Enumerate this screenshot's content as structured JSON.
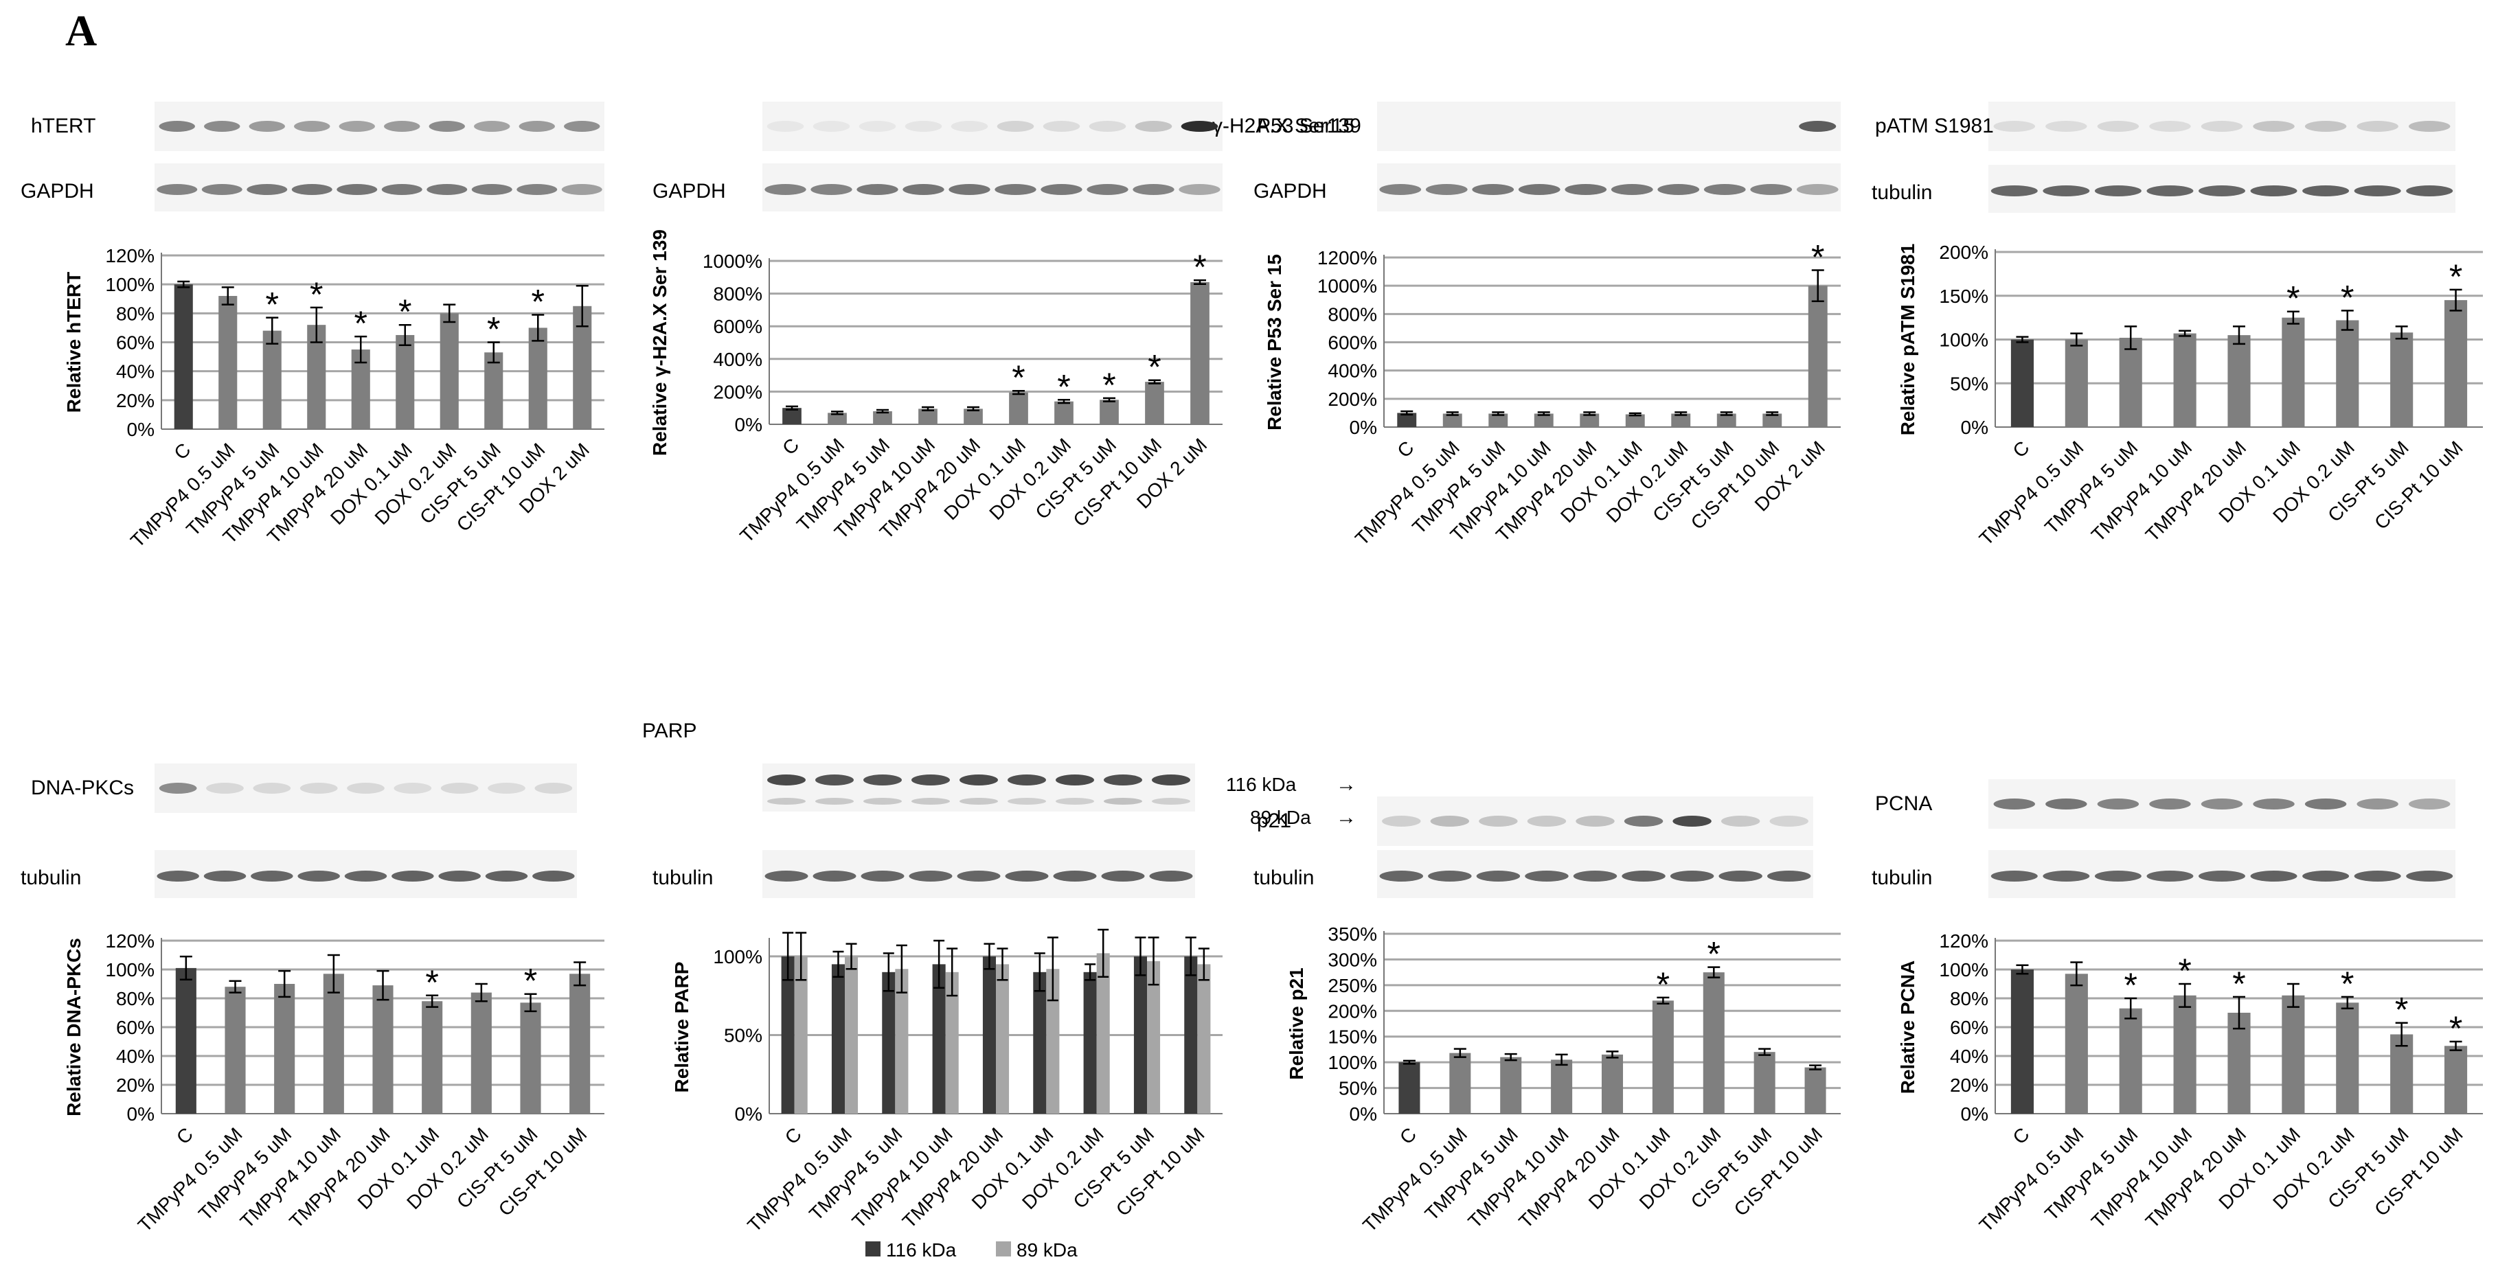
{
  "figure": {
    "panel_label": "A"
  },
  "colors": {
    "control": "#404040",
    "treated": "#7f7f7f",
    "band_kda116": "#3a3a3a",
    "band_kda89": "#a6a6a6",
    "blot_bg": "#f4f4f4",
    "band": "#3c3c3c",
    "grid": "#a6a6a6"
  },
  "chart_data": [
    {
      "id": "hTERT",
      "type": "bar",
      "blot_label": "hTERT",
      "loading_label": "GAPDH",
      "ylabel": "Relative hTERT",
      "ylim": [
        0,
        120
      ],
      "yticks": [
        0,
        20,
        40,
        60,
        80,
        100,
        120
      ],
      "grid": true,
      "tick_labels": [
        "0%",
        "20%",
        "40%",
        "60%",
        "80%",
        "100%",
        "120%"
      ],
      "categories": [
        "C",
        "TMPyP4 0.5 uM",
        "TMPyP4 5 uM",
        "TMPyP4 10 uM",
        "TMPyP4 20 uM",
        "DOX 0.1 uM",
        "DOX 0.2 uM",
        "CIS-Pt 5 uM",
        "CIS-Pt 10 uM",
        "DOX 2 uM"
      ],
      "values": [
        100,
        92,
        68,
        72,
        55,
        65,
        80,
        53,
        70,
        85
      ],
      "errors": [
        2,
        6,
        9,
        12,
        9,
        7,
        6,
        7,
        9,
        14
      ],
      "significant": [
        false,
        false,
        true,
        true,
        true,
        true,
        false,
        true,
        true,
        false
      ],
      "band_intensity": [
        0.55,
        0.5,
        0.42,
        0.4,
        0.38,
        0.42,
        0.5,
        0.38,
        0.42,
        0.48
      ],
      "loading_intensity": [
        0.55,
        0.55,
        0.6,
        0.62,
        0.62,
        0.6,
        0.6,
        0.58,
        0.55,
        0.4
      ]
    },
    {
      "id": "gH2AX",
      "type": "bar",
      "blot_label": "γ-H2A.X Ser139",
      "loading_label": "GAPDH",
      "ylabel": "Relative γ-H2A.X Ser 139",
      "ylim": [
        0,
        1000
      ],
      "yticks": [
        0,
        200,
        400,
        600,
        800,
        1000
      ],
      "grid": true,
      "tick_labels": [
        "0%",
        "200%",
        "400%",
        "600%",
        "800%",
        "1000%"
      ],
      "categories": [
        "C",
        "TMPyP4 0.5 uM",
        "TMPyP4 5 uM",
        "TMPyP4 10 uM",
        "TMPyP4 20 uM",
        "DOX 0.1 uM",
        "DOX 0.2 uM",
        "CIS-Pt 5 uM",
        "CIS-Pt 10 uM",
        "DOX 2 uM"
      ],
      "values": [
        100,
        70,
        80,
        95,
        95,
        195,
        140,
        150,
        260,
        870
      ],
      "errors": [
        10,
        8,
        8,
        10,
        10,
        10,
        10,
        10,
        10,
        12
      ],
      "significant": [
        false,
        false,
        false,
        false,
        false,
        true,
        true,
        true,
        true,
        true
      ],
      "band_intensity": [
        0.02,
        0.02,
        0.02,
        0.03,
        0.03,
        0.12,
        0.08,
        0.08,
        0.2,
        1.0
      ],
      "loading_intensity": [
        0.55,
        0.55,
        0.6,
        0.62,
        0.62,
        0.6,
        0.6,
        0.58,
        0.55,
        0.35
      ]
    },
    {
      "id": "P53",
      "type": "bar",
      "blot_label": "P53 Ser15",
      "loading_label": "GAPDH",
      "ylabel": "Relative P53 Ser 15",
      "ylim": [
        0,
        1200
      ],
      "yticks": [
        0,
        200,
        400,
        600,
        800,
        1000,
        1200
      ],
      "grid": true,
      "tick_labels": [
        "0%",
        "200%",
        "400%",
        "600%",
        "800%",
        "1000%",
        "1200%"
      ],
      "categories": [
        "C",
        "TMPyP4 0.5 uM",
        "TMPyP4 5 uM",
        "TMPyP4 10 uM",
        "TMPyP4 20 uM",
        "DOX 0.1 uM",
        "DOX 0.2 uM",
        "CIS-Pt 5 uM",
        "CIS-Pt 10 uM",
        "DOX 2 uM"
      ],
      "values": [
        100,
        95,
        95,
        95,
        95,
        90,
        95,
        95,
        95,
        1000
      ],
      "errors": [
        12,
        10,
        10,
        10,
        10,
        8,
        10,
        10,
        10,
        110
      ],
      "significant": [
        false,
        false,
        false,
        false,
        false,
        false,
        false,
        false,
        false,
        true
      ],
      "band_intensity": [
        0.0,
        0.0,
        0.0,
        0.0,
        0.0,
        0.0,
        0.0,
        0.0,
        0.0,
        0.75
      ],
      "loading_intensity": [
        0.55,
        0.55,
        0.6,
        0.62,
        0.62,
        0.6,
        0.6,
        0.58,
        0.55,
        0.35
      ]
    },
    {
      "id": "pATM",
      "type": "bar",
      "blot_label": "pATM S1981",
      "loading_label": "tubulin",
      "ylabel": "Relative pATM S1981",
      "ylim": [
        0,
        200
      ],
      "yticks": [
        0,
        50,
        100,
        150,
        200
      ],
      "grid": true,
      "tick_labels": [
        "0%",
        "50%",
        "100%",
        "150%",
        "200%"
      ],
      "categories": [
        "C",
        "TMPyP4 0.5 uM",
        "TMPyP4 5 uM",
        "TMPyP4 10 uM",
        "TMPyP4 20 uM",
        "DOX 0.1 uM",
        "DOX 0.2 uM",
        "CIS-Pt 5 uM",
        "CIS-Pt 10 uM"
      ],
      "values": [
        100,
        100,
        102,
        107,
        105,
        125,
        122,
        108,
        145
      ],
      "errors": [
        3,
        7,
        13,
        3,
        10,
        7,
        11,
        7,
        12
      ],
      "significant": [
        false,
        false,
        false,
        false,
        false,
        true,
        true,
        false,
        true
      ],
      "band_intensity": [
        0.08,
        0.08,
        0.1,
        0.08,
        0.1,
        0.2,
        0.2,
        0.15,
        0.25
      ],
      "loading_intensity": [
        0.7,
        0.7,
        0.7,
        0.7,
        0.7,
        0.72,
        0.72,
        0.72,
        0.72
      ]
    },
    {
      "id": "DNAPKcs",
      "type": "bar",
      "blot_label": "DNA-PKCs",
      "loading_label": "tubulin",
      "ylabel": "Relative DNA-PKCs",
      "ylim": [
        0,
        120
      ],
      "yticks": [
        0,
        20,
        40,
        60,
        80,
        100,
        120
      ],
      "grid": true,
      "tick_labels": [
        "0%",
        "20%",
        "40%",
        "60%",
        "80%",
        "100%",
        "120%"
      ],
      "categories": [
        "C",
        "TMPyP4 0.5 uM",
        "TMPyP4 5 uM",
        "TMPyP4 10 uM",
        "TMPyP4 20 uM",
        "DOX 0.1 uM",
        "DOX 0.2 uM",
        "CIS-Pt 5 uM",
        "CIS-Pt 10 uM"
      ],
      "values": [
        101,
        88,
        90,
        97,
        89,
        78,
        84,
        77,
        97
      ],
      "errors": [
        8,
        4,
        9,
        13,
        10,
        4,
        6,
        6,
        8
      ],
      "significant": [
        false,
        false,
        false,
        false,
        false,
        true,
        false,
        true,
        false
      ],
      "band_intensity": [
        0.5,
        0.1,
        0.1,
        0.1,
        0.1,
        0.08,
        0.1,
        0.08,
        0.1
      ],
      "loading_intensity": [
        0.7,
        0.7,
        0.7,
        0.7,
        0.7,
        0.72,
        0.72,
        0.72,
        0.72
      ]
    },
    {
      "id": "PARP",
      "type": "bar",
      "blot_label": "PARP",
      "loading_label": "tubulin",
      "band_markers": [
        "116 kDa",
        "89 kDa"
      ],
      "ylabel": "Relative PARP",
      "ylim": [
        0,
        110
      ],
      "yticks": [
        0,
        50,
        100
      ],
      "grid": true,
      "tick_labels": [
        "0%",
        "50%",
        "100%"
      ],
      "categories": [
        "C",
        "TMPyP4 0.5 uM",
        "TMPyP4 5 uM",
        "TMPyP4 10 uM",
        "TMPyP4 20 uM",
        "DOX 0.1 uM",
        "DOX 0.2 uM",
        "CIS-Pt 5 uM",
        "CIS-Pt 10 uM"
      ],
      "legend": [
        "116 kDa",
        "89 kDa"
      ],
      "series": [
        {
          "name": "116 kDa",
          "values": [
            100,
            95,
            90,
            95,
            100,
            90,
            90,
            100,
            100
          ],
          "errors": [
            15,
            8,
            12,
            15,
            8,
            12,
            5,
            12,
            12
          ]
        },
        {
          "name": "89 kDa",
          "values": [
            100,
            100,
            92,
            90,
            95,
            92,
            102,
            97,
            95
          ],
          "errors": [
            15,
            8,
            15,
            15,
            10,
            20,
            15,
            15,
            10
          ]
        }
      ],
      "significant": [
        false,
        false,
        false,
        false,
        false,
        false,
        false,
        false,
        false
      ],
      "band_intensity": [
        0.85,
        0.8,
        0.8,
        0.82,
        0.85,
        0.82,
        0.85,
        0.82,
        0.85
      ],
      "band2_intensity": [
        0.18,
        0.18,
        0.18,
        0.18,
        0.18,
        0.15,
        0.15,
        0.22,
        0.15
      ],
      "loading_intensity": [
        0.7,
        0.7,
        0.7,
        0.7,
        0.7,
        0.72,
        0.72,
        0.72,
        0.72
      ]
    },
    {
      "id": "p21",
      "type": "bar",
      "blot_label": "p21",
      "loading_label": "tubulin",
      "ylabel": "Relative p21",
      "ylim": [
        0,
        350
      ],
      "yticks": [
        0,
        50,
        100,
        150,
        200,
        250,
        300,
        350
      ],
      "grid": true,
      "tick_labels": [
        "0%",
        "50%",
        "100%",
        "150%",
        "200%",
        "250%",
        "300%",
        "350%"
      ],
      "categories": [
        "C",
        "TMPyP4 0.5 uM",
        "TMPyP4 5 uM",
        "TMPyP4 10 uM",
        "TMPyP4 20 uM",
        "DOX 0.1 uM",
        "DOX 0.2 uM",
        "CIS-Pt 5 uM",
        "CIS-Pt 10 uM"
      ],
      "values": [
        100,
        118,
        110,
        105,
        115,
        220,
        275,
        120,
        90
      ],
      "errors": [
        3,
        8,
        6,
        10,
        6,
        6,
        10,
        6,
        4
      ],
      "significant": [
        false,
        false,
        false,
        false,
        false,
        true,
        true,
        false,
        false
      ],
      "band_intensity": [
        0.15,
        0.25,
        0.2,
        0.18,
        0.22,
        0.6,
        0.85,
        0.18,
        0.12
      ],
      "loading_intensity": [
        0.7,
        0.7,
        0.7,
        0.7,
        0.7,
        0.72,
        0.72,
        0.72,
        0.72
      ]
    },
    {
      "id": "PCNA",
      "type": "bar",
      "blot_label": "PCNA",
      "loading_label": "tubulin",
      "ylabel": "Relative PCNA",
      "ylim": [
        0,
        120
      ],
      "yticks": [
        0,
        20,
        40,
        60,
        80,
        100,
        120
      ],
      "grid": true,
      "tick_labels": [
        "0%",
        "20%",
        "40%",
        "60%",
        "80%",
        "100%",
        "120%"
      ],
      "categories": [
        "C",
        "TMPyP4 0.5 uM",
        "TMPyP4 5 uM",
        "TMPyP4 10 uM",
        "TMPyP4 20 uM",
        "DOX 0.1 uM",
        "DOX 0.2 uM",
        "CIS-Pt 5 uM",
        "CIS-Pt 10 uM"
      ],
      "values": [
        100,
        97,
        73,
        82,
        70,
        82,
        77,
        55,
        47
      ],
      "errors": [
        3,
        8,
        7,
        8,
        11,
        8,
        4,
        8,
        3
      ],
      "significant": [
        false,
        false,
        true,
        true,
        true,
        false,
        true,
        true,
        true
      ],
      "band_intensity": [
        0.6,
        0.62,
        0.55,
        0.55,
        0.5,
        0.55,
        0.6,
        0.45,
        0.35
      ],
      "loading_intensity": [
        0.7,
        0.7,
        0.7,
        0.7,
        0.7,
        0.72,
        0.72,
        0.72,
        0.72
      ]
    }
  ]
}
